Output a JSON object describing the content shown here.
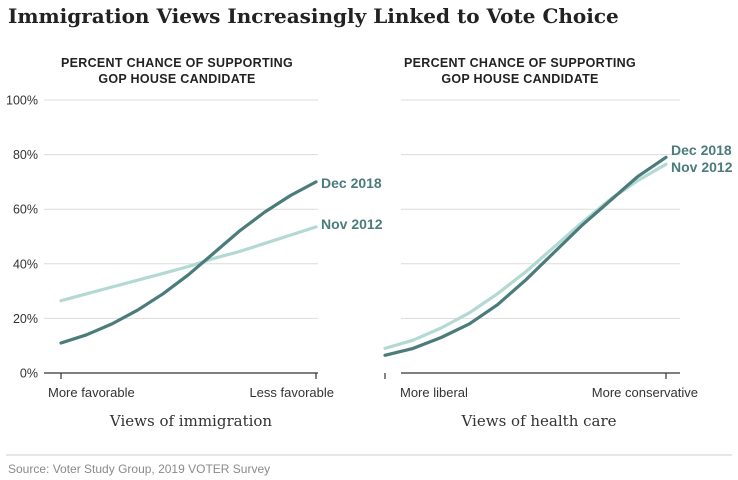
{
  "title": "Immigration Views Increasingly Linked to Vote Choice",
  "source": "Source: Voter Study Group, 2019 VOTER Survey",
  "colors": {
    "dec_2018": "#4b7b7b",
    "nov_2012": "#b3d9d3"
  },
  "chart_data": [
    {
      "type": "line",
      "title": "PERCENT CHANCE OF SUPPORTING GOP HOUSE CANDIDATE",
      "title_lines": [
        "PERCENT CHANCE OF SUPPORTING",
        "GOP HOUSE CANDIDATE"
      ],
      "xlabel": "Views of immigration",
      "ylabel": "",
      "x_tick_labels": [
        "More favorable",
        "Less favorable"
      ],
      "x": [
        0,
        0.1,
        0.2,
        0.3,
        0.4,
        0.5,
        0.6,
        0.7,
        0.8,
        0.9,
        1
      ],
      "ylim": [
        0,
        100
      ],
      "y_ticks": [
        0,
        20,
        40,
        60,
        80,
        100
      ],
      "y_tick_labels": [
        "0%",
        "20%",
        "40%",
        "60%",
        "80%",
        "100%"
      ],
      "grid": true,
      "series": [
        {
          "name": "Dec 2018",
          "values": [
            11,
            14,
            18,
            23,
            29,
            36,
            44,
            52,
            59,
            65,
            70
          ]
        },
        {
          "name": "Nov 2012",
          "values": [
            26.5,
            29,
            31.5,
            34,
            36.5,
            39,
            42,
            44.5,
            47.5,
            50.5,
            53.5
          ]
        }
      ]
    },
    {
      "type": "line",
      "title": "PERCENT CHANCE OF SUPPORTING GOP HOUSE CANDIDATE",
      "title_lines": [
        "PERCENT CHANCE OF SUPPORTING",
        "GOP HOUSE CANDIDATE"
      ],
      "xlabel": "Views of health care",
      "ylabel": "",
      "x_tick_labels": [
        "More liberal",
        "More conservative"
      ],
      "x": [
        0,
        0.1,
        0.2,
        0.3,
        0.4,
        0.5,
        0.6,
        0.7,
        0.8,
        0.9,
        1
      ],
      "ylim": [
        0,
        100
      ],
      "y_ticks": [
        0,
        20,
        40,
        60,
        80,
        100
      ],
      "y_tick_labels": [
        "0%",
        "20%",
        "40%",
        "60%",
        "80%",
        "100%"
      ],
      "grid": true,
      "series": [
        {
          "name": "Dec 2018",
          "values": [
            6.5,
            9,
            13,
            18,
            25,
            34,
            44,
            54,
            63,
            72,
            79
          ]
        },
        {
          "name": "Nov 2012",
          "values": [
            9,
            12,
            16.5,
            22,
            29,
            37,
            46,
            55,
            63.5,
            70.5,
            76.5
          ]
        }
      ]
    }
  ]
}
